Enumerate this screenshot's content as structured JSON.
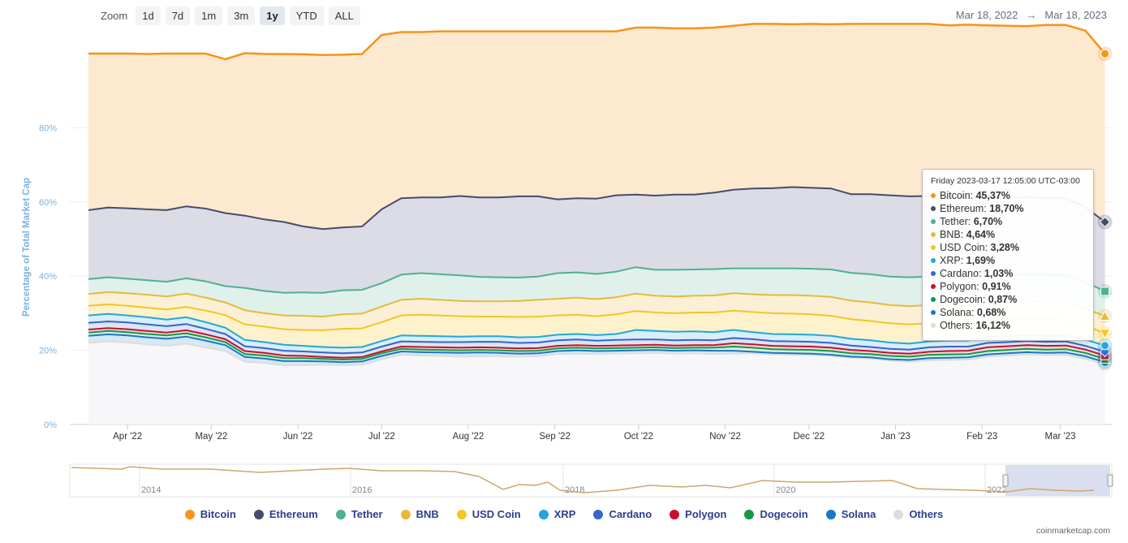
{
  "zoom": {
    "label": "Zoom",
    "buttons": [
      "1d",
      "7d",
      "1m",
      "3m",
      "1y",
      "YTD",
      "ALL"
    ],
    "active": "1y"
  },
  "date_range": {
    "from": "Mar 18, 2022",
    "arrow": "→",
    "to": "Mar 18, 2023"
  },
  "tooltip": {
    "header": "Friday 2023-03-17 12:05:00 UTC-03:00",
    "rows": [
      {
        "name": "Bitcoin",
        "value": "45,37%",
        "color": "#f7931a"
      },
      {
        "name": "Ethereum",
        "value": "18,70%",
        "color": "#474b6b"
      },
      {
        "name": "Tether",
        "value": "6,70%",
        "color": "#50af95"
      },
      {
        "name": "BNB",
        "value": "4,64%",
        "color": "#e8b93c"
      },
      {
        "name": "USD Coin",
        "value": "3,28%",
        "color": "#f3c623"
      },
      {
        "name": "XRP",
        "value": "1,69%",
        "color": "#23a6da"
      },
      {
        "name": "Cardano",
        "value": "1,03%",
        "color": "#3366cc"
      },
      {
        "name": "Polygon",
        "value": "0,91%",
        "color": "#c8102e"
      },
      {
        "name": "Dogecoin",
        "value": "0,87%",
        "color": "#119944"
      },
      {
        "name": "Solana",
        "value": "0,68%",
        "color": "#1878c8"
      },
      {
        "name": "Others",
        "value": "16,12%",
        "color": "#dddddd"
      }
    ]
  },
  "legend": [
    {
      "name": "Bitcoin",
      "color": "#f7931a"
    },
    {
      "name": "Ethereum",
      "color": "#474b6b"
    },
    {
      "name": "Tether",
      "color": "#50af95"
    },
    {
      "name": "BNB",
      "color": "#e8b93c"
    },
    {
      "name": "USD Coin",
      "color": "#f3c623"
    },
    {
      "name": "XRP",
      "color": "#23a6da"
    },
    {
      "name": "Cardano",
      "color": "#3366cc"
    },
    {
      "name": "Polygon",
      "color": "#c8102e"
    },
    {
      "name": "Dogecoin",
      "color": "#119944"
    },
    {
      "name": "Solana",
      "color": "#1878c8"
    },
    {
      "name": "Others",
      "color": "#dddddd"
    }
  ],
  "credit": "coinmarketcap.com",
  "chart_data": {
    "type": "area",
    "stacked": true,
    "ylabel": "Percentage of Total Market Cap",
    "ylim": [
      0,
      100
    ],
    "yticks": [
      "0%",
      "20%",
      "40%",
      "60%",
      "80%"
    ],
    "ytick_values": [
      0,
      20,
      40,
      60,
      80
    ],
    "xlim": [
      "2022-03-18",
      "2023-03-18"
    ],
    "xticks": [
      {
        "label": "Apr '22",
        "date": "2022-04-01"
      },
      {
        "label": "May '22",
        "date": "2022-05-01"
      },
      {
        "label": "Jun '22",
        "date": "2022-06-01"
      },
      {
        "label": "Jul '22",
        "date": "2022-07-01"
      },
      {
        "label": "Aug '22",
        "date": "2022-08-01"
      },
      {
        "label": "Sep '22",
        "date": "2022-09-01"
      },
      {
        "label": "Oct '22",
        "date": "2022-10-01"
      },
      {
        "label": "Nov '22",
        "date": "2022-11-01"
      },
      {
        "label": "Dec '22",
        "date": "2022-12-01"
      },
      {
        "label": "Jan '23",
        "date": "2023-01-01"
      },
      {
        "label": "Feb '23",
        "date": "2023-02-01"
      },
      {
        "label": "Mar '23",
        "date": "2023-03-01"
      }
    ],
    "dates": [
      "2022-03-18",
      "2022-03-25",
      "2022-04-01",
      "2022-04-08",
      "2022-04-15",
      "2022-04-22",
      "2022-04-29",
      "2022-05-06",
      "2022-05-13",
      "2022-05-20",
      "2022-05-27",
      "2022-06-03",
      "2022-06-10",
      "2022-06-17",
      "2022-06-24",
      "2022-07-01",
      "2022-07-08",
      "2022-07-15",
      "2022-07-22",
      "2022-07-29",
      "2022-08-05",
      "2022-08-12",
      "2022-08-19",
      "2022-08-26",
      "2022-09-02",
      "2022-09-09",
      "2022-09-16",
      "2022-09-23",
      "2022-09-30",
      "2022-10-07",
      "2022-10-14",
      "2022-10-21",
      "2022-10-28",
      "2022-11-04",
      "2022-11-11",
      "2022-11-18",
      "2022-11-25",
      "2022-12-02",
      "2022-12-09",
      "2022-12-16",
      "2022-12-23",
      "2022-12-30",
      "2023-01-06",
      "2023-01-13",
      "2023-01-20",
      "2023-01-27",
      "2023-02-03",
      "2023-02-10",
      "2023-02-17",
      "2023-02-24",
      "2023-03-03",
      "2023-03-10",
      "2023-03-17"
    ],
    "series": [
      {
        "name": "Others",
        "color": "#dddddd",
        "fill": "#f7f7f9",
        "values": [
          22.0,
          22.4,
          22.1,
          21.6,
          21.2,
          21.8,
          20.8,
          19.8,
          16.9,
          16.6,
          16.0,
          16.0,
          16.1,
          16.0,
          16.1,
          17.6,
          18.8,
          18.6,
          18.5,
          18.3,
          18.4,
          18.4,
          18.3,
          18.4,
          19.0,
          19.1,
          19.0,
          19.1,
          19.2,
          19.3,
          19.1,
          19.2,
          19.0,
          19.1,
          19.2,
          18.9,
          18.8,
          18.7,
          18.5,
          18.0,
          17.8,
          17.2,
          16.9,
          17.3,
          17.4,
          17.5,
          18.3,
          18.6,
          18.9,
          18.7,
          18.8,
          17.7,
          16.1
        ]
      },
      {
        "name": "Solana",
        "color": "#1878c8",
        "fill": "#d8e8f5",
        "values": [
          1.9,
          1.9,
          1.9,
          1.9,
          1.9,
          1.9,
          1.8,
          1.6,
          1.3,
          1.2,
          1.1,
          1.1,
          0.9,
          0.8,
          0.9,
          0.9,
          0.9,
          0.9,
          0.9,
          1.0,
          1.0,
          0.9,
          0.8,
          0.8,
          0.8,
          0.9,
          0.8,
          0.8,
          0.8,
          0.8,
          0.8,
          0.8,
          0.9,
          0.8,
          0.4,
          0.4,
          0.4,
          0.4,
          0.3,
          0.3,
          0.3,
          0.4,
          0.5,
          0.6,
          0.6,
          0.6,
          0.6,
          0.6,
          0.6,
          0.6,
          0.6,
          0.7,
          0.68
        ]
      },
      {
        "name": "Dogecoin",
        "color": "#119944",
        "fill": "#dbeee1",
        "values": [
          0.9,
          0.9,
          0.9,
          0.9,
          0.9,
          0.9,
          0.9,
          0.8,
          0.8,
          0.8,
          0.8,
          0.8,
          0.7,
          0.7,
          0.7,
          0.7,
          0.7,
          0.7,
          0.7,
          0.7,
          0.7,
          0.7,
          0.7,
          0.7,
          0.7,
          0.7,
          0.7,
          0.7,
          0.7,
          0.7,
          0.7,
          0.7,
          0.8,
          1.1,
          1.1,
          1.0,
          1.0,
          1.0,
          1.0,
          0.9,
          0.9,
          0.9,
          0.9,
          0.9,
          0.9,
          0.9,
          0.9,
          0.9,
          0.9,
          0.9,
          0.9,
          0.9,
          0.87
        ]
      },
      {
        "name": "Polygon",
        "color": "#c8102e",
        "fill": "#f1dde1",
        "values": [
          0.8,
          0.8,
          0.8,
          0.8,
          0.8,
          0.8,
          0.8,
          0.8,
          0.8,
          0.7,
          0.7,
          0.6,
          0.5,
          0.5,
          0.5,
          0.5,
          0.6,
          0.7,
          0.7,
          0.7,
          0.7,
          0.7,
          0.7,
          0.7,
          0.7,
          0.7,
          0.7,
          0.7,
          0.7,
          0.7,
          0.7,
          0.7,
          0.7,
          0.9,
          0.9,
          0.9,
          0.9,
          0.9,
          0.9,
          0.9,
          0.8,
          0.8,
          0.8,
          0.8,
          0.9,
          0.9,
          1.0,
          1.0,
          1.0,
          1.0,
          1.0,
          0.9,
          0.91
        ]
      },
      {
        "name": "Cardano",
        "color": "#3366cc",
        "fill": "#dde5f4",
        "values": [
          1.8,
          1.8,
          1.8,
          1.8,
          1.7,
          1.7,
          1.5,
          1.4,
          1.3,
          1.3,
          1.3,
          1.2,
          1.2,
          1.2,
          1.2,
          1.3,
          1.4,
          1.4,
          1.4,
          1.5,
          1.5,
          1.6,
          1.5,
          1.5,
          1.5,
          1.5,
          1.4,
          1.5,
          1.5,
          1.4,
          1.4,
          1.4,
          1.3,
          1.4,
          1.4,
          1.3,
          1.3,
          1.3,
          1.3,
          1.2,
          1.1,
          1.1,
          1.1,
          1.2,
          1.2,
          1.1,
          1.2,
          1.1,
          1.1,
          1.1,
          1.1,
          1.0,
          1.03
        ]
      },
      {
        "name": "XRP",
        "color": "#23a6da",
        "fill": "#d9eef7",
        "values": [
          2.0,
          2.0,
          1.9,
          1.9,
          1.8,
          1.8,
          1.8,
          1.7,
          1.7,
          1.6,
          1.6,
          1.5,
          1.5,
          1.5,
          1.5,
          1.5,
          1.6,
          1.6,
          1.6,
          1.5,
          1.5,
          1.5,
          1.5,
          1.5,
          1.5,
          1.5,
          1.5,
          1.6,
          2.6,
          2.3,
          2.3,
          2.3,
          2.2,
          2.2,
          1.9,
          1.9,
          1.9,
          1.9,
          1.9,
          1.8,
          1.8,
          1.7,
          1.6,
          1.6,
          1.6,
          1.6,
          1.6,
          1.6,
          1.6,
          1.6,
          1.6,
          1.7,
          1.69
        ]
      },
      {
        "name": "USD Coin",
        "color": "#f3c623",
        "fill": "#fdf2cc",
        "values": [
          2.6,
          2.6,
          2.6,
          2.6,
          2.7,
          2.8,
          3.1,
          3.4,
          4.2,
          4.2,
          4.2,
          4.3,
          4.5,
          5.1,
          5.0,
          5.1,
          5.4,
          5.7,
          5.6,
          5.5,
          5.3,
          5.3,
          5.5,
          5.5,
          5.2,
          5.2,
          5.1,
          5.3,
          5.1,
          5.0,
          5.0,
          5.1,
          5.3,
          5.2,
          5.4,
          5.6,
          5.6,
          5.5,
          5.4,
          5.3,
          5.2,
          5.2,
          5.2,
          4.9,
          4.8,
          4.6,
          4.6,
          4.6,
          4.5,
          4.5,
          4.3,
          3.8,
          3.28
        ]
      },
      {
        "name": "BNB",
        "color": "#e8b93c",
        "fill": "#fbf0d6",
        "values": [
          3.2,
          3.3,
          3.4,
          3.5,
          3.5,
          3.6,
          3.5,
          3.4,
          3.8,
          3.6,
          3.7,
          3.8,
          3.7,
          3.9,
          4.0,
          4.2,
          4.2,
          4.3,
          4.2,
          4.1,
          4.1,
          4.1,
          4.3,
          4.5,
          4.5,
          4.6,
          4.6,
          4.6,
          4.7,
          4.5,
          4.5,
          4.5,
          4.6,
          4.7,
          4.8,
          4.9,
          5.0,
          5.0,
          5.1,
          5.0,
          5.0,
          4.9,
          4.9,
          4.9,
          4.9,
          4.9,
          4.8,
          4.7,
          4.7,
          4.7,
          4.7,
          4.6,
          4.64
        ]
      },
      {
        "name": "Tether",
        "color": "#50af95",
        "fill": "#dff1ea",
        "values": [
          4.0,
          4.0,
          3.9,
          3.9,
          4.0,
          4.1,
          4.4,
          4.4,
          6.0,
          6.0,
          6.1,
          6.3,
          6.4,
          6.5,
          6.4,
          6.3,
          6.8,
          6.9,
          6.9,
          6.9,
          6.6,
          6.5,
          6.3,
          6.3,
          6.9,
          6.8,
          6.8,
          6.9,
          7.1,
          7.0,
          7.2,
          7.1,
          7.1,
          6.7,
          7.0,
          7.2,
          7.2,
          7.3,
          7.4,
          7.5,
          7.6,
          7.7,
          7.8,
          7.7,
          7.4,
          7.4,
          7.3,
          7.1,
          7.1,
          7.2,
          7.2,
          7.1,
          6.7
        ]
      },
      {
        "name": "Ethereum",
        "color": "#474b6b",
        "fill": "#dcdce6",
        "values": [
          18.6,
          18.8,
          19.0,
          19.1,
          19.3,
          19.4,
          19.6,
          19.7,
          19.5,
          19.3,
          19.1,
          17.8,
          17.2,
          16.9,
          17.1,
          19.9,
          20.6,
          20.4,
          20.7,
          21.4,
          21.4,
          21.5,
          21.9,
          21.6,
          19.9,
          20.0,
          20.3,
          20.6,
          19.6,
          20.0,
          20.3,
          20.2,
          20.6,
          21.2,
          21.5,
          21.6,
          21.9,
          21.8,
          21.8,
          21.2,
          21.6,
          21.9,
          21.8,
          21.7,
          21.8,
          21.8,
          21.2,
          20.8,
          20.9,
          20.8,
          20.8,
          20.2,
          18.7
        ]
      },
      {
        "name": "Bitcoin",
        "color": "#f7931a",
        "fill": "#fce9cf",
        "values": [
          42.2,
          41.5,
          41.7,
          41.9,
          42.2,
          41.2,
          41.8,
          41.5,
          43.8,
          44.6,
          45.3,
          46.4,
          46.9,
          46.6,
          46.5,
          47.0,
          44.8,
          44.6,
          44.8,
          44.4,
          44.8,
          44.8,
          44.5,
          44.5,
          45.3,
          45.0,
          45.1,
          44.2,
          45.0,
          45.3,
          44.8,
          44.8,
          44.5,
          44.2,
          44.4,
          44.3,
          43.9,
          44.2,
          44.3,
          45.9,
          45.9,
          46.2,
          46.5,
          46.4,
          46.1,
          46.5,
          46.1,
          46.5,
          46.1,
          46.6,
          46.7,
          47.6,
          45.37
        ]
      }
    ]
  },
  "navigator": {
    "years": [
      "2014",
      "2016",
      "2018",
      "2020",
      "2022"
    ]
  }
}
